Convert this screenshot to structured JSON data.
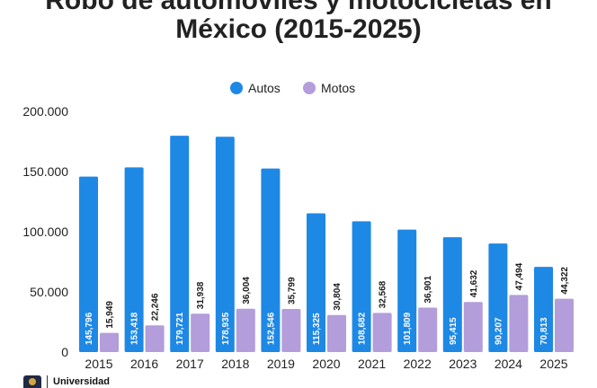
{
  "header": {
    "title_line1": "Robo de automóviles y motocicletas en",
    "title_line2": "México (2015-2025)"
  },
  "footer": {
    "logo_text": "Universidad"
  },
  "colors": {
    "autos": "#1e88e5",
    "motos": "#b39ddb",
    "axis_text": "#222222"
  },
  "chart_data": {
    "type": "bar",
    "categories": [
      "2015",
      "2016",
      "2017",
      "2018",
      "2019",
      "2020",
      "2021",
      "2022",
      "2023",
      "2024",
      "2025"
    ],
    "series": [
      {
        "name": "Autos",
        "values": [
          145796,
          153418,
          179721,
          178935,
          152546,
          115325,
          108682,
          101809,
          95415,
          90207,
          70813
        ],
        "labels": [
          "145,796",
          "153,418",
          "179,721",
          "178,935",
          "152,546",
          "115,325",
          "108,682",
          "101,809",
          "95,415",
          "90,207",
          "70,813"
        ]
      },
      {
        "name": "Motos",
        "values": [
          15949,
          22246,
          31938,
          36004,
          35799,
          30804,
          32568,
          36901,
          41632,
          47494,
          44322
        ],
        "labels": [
          "15,949",
          "22,246",
          "31,938",
          "36,004",
          "35,799",
          "30,804",
          "32,568",
          "36,901",
          "41,632",
          "47,494",
          "44,322"
        ]
      }
    ],
    "yticks": [
      0,
      50000,
      100000,
      150000,
      200000
    ],
    "ytick_labels": [
      "0",
      "50.000",
      "100.000",
      "150.000",
      "200.000"
    ],
    "ylim": [
      0,
      200000
    ],
    "legend_position": "top-center",
    "grid": false
  }
}
